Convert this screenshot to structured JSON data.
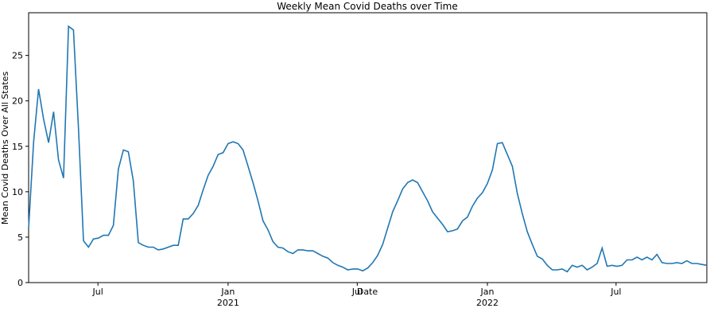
{
  "chart_data": {
    "type": "line",
    "title": "Weekly Mean Covid Deaths over Time",
    "x_label": "Date",
    "y_label": "Mean Covid Deaths Over All States",
    "categories": [
      null,
      null,
      null,
      null,
      null,
      null,
      null,
      null,
      null,
      null,
      null,
      null,
      null,
      null,
      null,
      null,
      null,
      null,
      null,
      null,
      null,
      null,
      null,
      null,
      null,
      null,
      null,
      null,
      null,
      null,
      null,
      null,
      null,
      null,
      null,
      null,
      null,
      null,
      null,
      null,
      null,
      null,
      null,
      null,
      null,
      null,
      null,
      null,
      null,
      null,
      null,
      null,
      null,
      null,
      null,
      null,
      null,
      null,
      null,
      null,
      null,
      null,
      null,
      null,
      null,
      null,
      null,
      null,
      null,
      null,
      null,
      null,
      null,
      null,
      null,
      null,
      null,
      null,
      null,
      null,
      null,
      null,
      null,
      null,
      null,
      null,
      null,
      null,
      null,
      null,
      null,
      null,
      null,
      null,
      null,
      null,
      null,
      null,
      null,
      null,
      null,
      null,
      null,
      null,
      null,
      null,
      null,
      null,
      null,
      null,
      null,
      null,
      null,
      null,
      null,
      null,
      null,
      null,
      null,
      null,
      null,
      null,
      null,
      null,
      null,
      null,
      null,
      null,
      null,
      null,
      null,
      null,
      null,
      null,
      null,
      null,
      null
    ],
    "series": [
      {
        "color": "#1f77b4",
        "values": [
          6,
          15.5,
          21.3,
          18,
          15.4,
          18.8,
          13.5,
          11.5,
          28.2,
          27.8,
          17,
          4.6,
          3.9,
          4.8,
          4.9,
          5.2,
          5.2,
          6.3,
          12.5,
          14.6,
          14.4,
          11.2,
          4.4,
          4.1,
          3.9,
          3.9,
          3.6,
          3.7,
          3.9,
          4.1,
          4.1,
          7.0,
          7.0,
          7.6,
          8.5,
          10.2,
          11.8,
          12.8,
          14.1,
          14.3,
          15.3,
          15.5,
          15.3,
          14.6,
          12.8,
          11,
          9,
          6.8,
          5.8,
          4.5,
          3.9,
          3.8,
          3.4,
          3.2,
          3.6,
          3.6,
          3.5,
          3.5,
          3.2,
          2.9,
          2.7,
          2.2,
          1.9,
          1.7,
          1.4,
          1.5,
          1.5,
          1.3,
          1.6,
          2.2,
          3.0,
          4.2,
          6.0,
          7.8,
          9,
          10.3,
          11.0,
          11.3,
          11,
          10,
          9.0,
          7.8,
          7.1,
          6.4,
          5.6,
          5.7,
          5.9,
          6.8,
          7.2,
          8.4,
          9.3,
          9.9,
          10.9,
          12.4,
          15.3,
          15.4,
          14.1,
          12.8,
          9.8,
          7.6,
          5.6,
          4.2,
          2.9,
          2.6,
          1.9,
          1.4,
          1.4,
          1.5,
          1.2,
          1.9,
          1.7,
          1.9,
          1.4,
          1.7,
          2.1,
          3.8,
          1.8,
          1.9,
          1.8,
          1.9,
          2.5,
          2.5,
          2.8,
          2.5,
          2.8,
          2.5,
          3.1,
          2.2,
          2.1,
          2.1,
          2.2,
          2.1,
          2.4,
          2.1,
          2.1,
          2.0,
          1.9
        ]
      }
    ],
    "xlim": [
      0,
      136
    ],
    "xticks": [
      {
        "value": 13.9,
        "label": "Jul"
      },
      {
        "value": 40,
        "label": "Jan\n2021"
      },
      {
        "value": 65.9,
        "label": "Jul"
      },
      {
        "value": 92,
        "label": "Jan\n2022"
      },
      {
        "value": 117.8,
        "label": "Jul"
      }
    ],
    "ylim": [
      0,
      29.7
    ],
    "yticks": [
      0,
      5,
      10,
      15,
      20,
      25
    ]
  }
}
